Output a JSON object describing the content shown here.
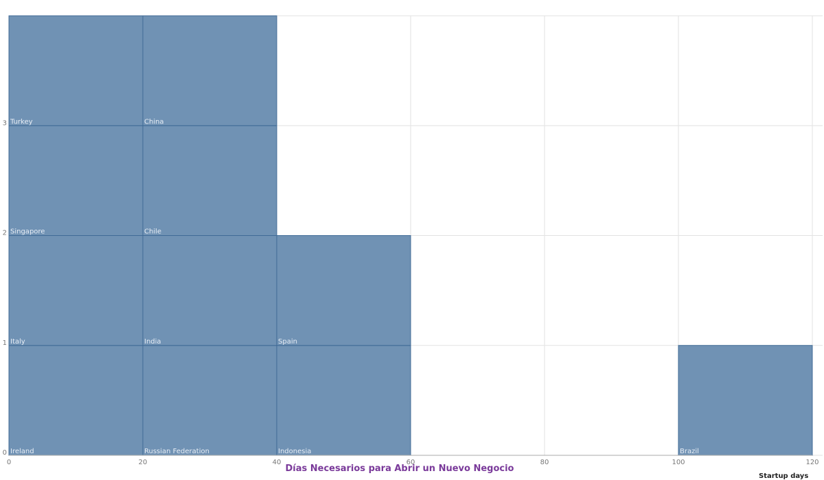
{
  "colors": {
    "bar_fill": "#7092b4",
    "bar_stroke": "#3f6a96",
    "grid": "#e2e2e2",
    "title": "#7a3a9a"
  },
  "chart_data": {
    "type": "bar",
    "title": "Días Necesarios para Abrir un Nuevo Negocio",
    "xlabel": "Startup days",
    "ylabel": "",
    "xlim": [
      0,
      120
    ],
    "ylim": [
      0,
      4
    ],
    "x_ticks": [
      "0",
      "20",
      "40",
      "60",
      "80",
      "100",
      "120"
    ],
    "y_ticks": [
      "0",
      "1",
      "2",
      "3"
    ],
    "grid": true,
    "bins": [
      {
        "range": [
          0,
          20
        ],
        "count": 4,
        "countries": [
          "Ireland",
          "Italy",
          "Singapore",
          "Turkey"
        ]
      },
      {
        "range": [
          20,
          40
        ],
        "count": 4,
        "countries": [
          "Russian Federation",
          "India",
          "Chile",
          "China"
        ]
      },
      {
        "range": [
          40,
          60
        ],
        "count": 2,
        "countries": [
          "Indonesia",
          "Spain"
        ]
      },
      {
        "range": [
          60,
          80
        ],
        "count": 0,
        "countries": []
      },
      {
        "range": [
          80,
          100
        ],
        "count": 0,
        "countries": []
      },
      {
        "range": [
          100,
          120
        ],
        "count": 1,
        "countries": [
          "Brazil"
        ]
      }
    ]
  }
}
